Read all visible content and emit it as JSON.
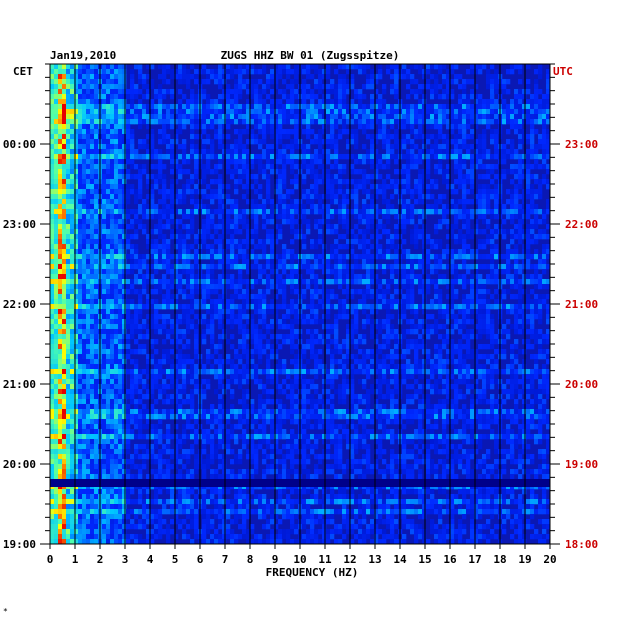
{
  "chart_data": {
    "type": "heatmap",
    "title": "ZUGS HHZ BW 01 (Zugsspitze)",
    "date_label": "Jan19,2010",
    "left_timezone": "CET",
    "right_timezone": "UTC",
    "xlabel": "FREQUENCY (HZ)",
    "xlim": [
      0,
      20
    ],
    "x_ticks": [
      "0",
      "1",
      "2",
      "3",
      "4",
      "5",
      "6",
      "7",
      "8",
      "9",
      "10",
      "11",
      "12",
      "13",
      "14",
      "15",
      "16",
      "17",
      "18",
      "19",
      "20"
    ],
    "y_ticks_left": [
      "00:00",
      "23:00",
      "22:00",
      "21:00",
      "20:00",
      "19:00"
    ],
    "y_ticks_right": [
      "23:00",
      "22:00",
      "21:00",
      "20:00",
      "19:00",
      "18:00"
    ],
    "colors": {
      "background": "#0a18b4",
      "low": "#0000a0",
      "mid": "#00c8ff",
      "high": "#ff0000",
      "gridline": "#000000",
      "utc_text": "#cc0000"
    },
    "footer_mark": "*"
  }
}
